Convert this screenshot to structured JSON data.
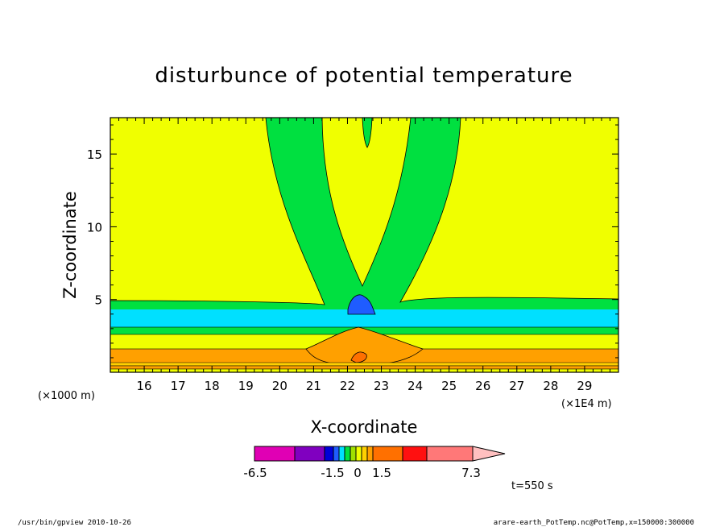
{
  "chart_data": {
    "type": "heatmap",
    "title": "disturbunce of potential temperature",
    "xlabel": "X-coordinate",
    "ylabel": "Z-coordinate",
    "x_unit_left": "(×1000 m)",
    "x_unit_right": "(×1E4 m)",
    "xlim": [
      15.0,
      30.0
    ],
    "ylim": [
      0,
      17.5
    ],
    "x_ticks": [
      "16",
      "17",
      "18",
      "19",
      "20",
      "21",
      "22",
      "23",
      "24",
      "25",
      "26",
      "27",
      "28",
      "29"
    ],
    "y_ticks": [
      "5",
      "10",
      "15"
    ],
    "colorbar": {
      "colors": [
        "#e000b4",
        "#8000c0",
        "#0000d8",
        "#1f5cff",
        "#00e0ff",
        "#00e040",
        "#a0e000",
        "#f0ff00",
        "#ffd000",
        "#ffa000",
        "#ff7000",
        "#ff1010",
        "#ff7878",
        "#ffc0c0"
      ],
      "labels": [
        "-6.5",
        "-1.5",
        "0",
        "1.5",
        "7.3"
      ]
    },
    "annotation": "t=550 s"
  },
  "footer": {
    "left": "/usr/bin/gpview   2010-10-26",
    "right": "arare-earth_PotTemp.nc@PotTemp,x=150000:300000"
  }
}
